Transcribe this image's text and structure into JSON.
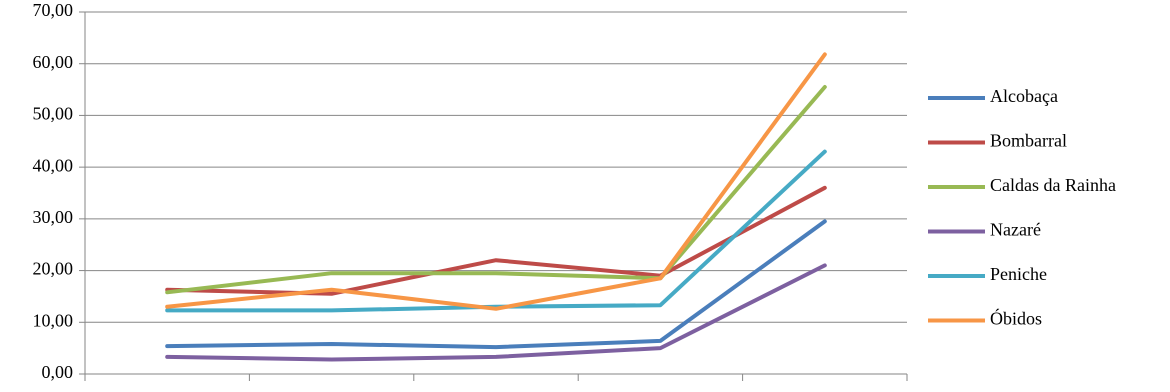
{
  "chart_data": {
    "type": "line",
    "categories": [
      null,
      null,
      null,
      null,
      null
    ],
    "series": [
      {
        "name": "Alcobaça",
        "color": "#4a7ebb",
        "values": [
          5.4,
          5.8,
          5.2,
          6.4,
          29.5
        ]
      },
      {
        "name": "Bombarral",
        "color": "#be4b48",
        "values": [
          16.3,
          15.5,
          22.0,
          19.0,
          36.0
        ]
      },
      {
        "name": "Caldas da Rainha",
        "color": "#98b954",
        "values": [
          15.8,
          19.5,
          19.5,
          18.5,
          55.5
        ]
      },
      {
        "name": "Nazaré",
        "color": "#7d60a0",
        "values": [
          3.3,
          2.8,
          3.3,
          5.0,
          21.0
        ]
      },
      {
        "name": "Peniche",
        "color": "#46aac5",
        "values": [
          12.3,
          12.3,
          13.0,
          13.3,
          43.0
        ]
      },
      {
        "name": "Óbidos",
        "color": "#f79646",
        "values": [
          13.0,
          16.3,
          12.6,
          18.5,
          61.8
        ]
      }
    ],
    "ylim": [
      0,
      70
    ],
    "yticks": [
      {
        "value": 0,
        "label": "0,00"
      },
      {
        "value": 10,
        "label": "10,00"
      },
      {
        "value": 20,
        "label": "20,00"
      },
      {
        "value": 30,
        "label": "30,00"
      },
      {
        "value": 40,
        "label": "40,00"
      },
      {
        "value": 50,
        "label": "50,00"
      },
      {
        "value": 60,
        "label": "60,00"
      },
      {
        "value": 70,
        "label": "70,00"
      }
    ],
    "grid": true,
    "legend": "right"
  }
}
